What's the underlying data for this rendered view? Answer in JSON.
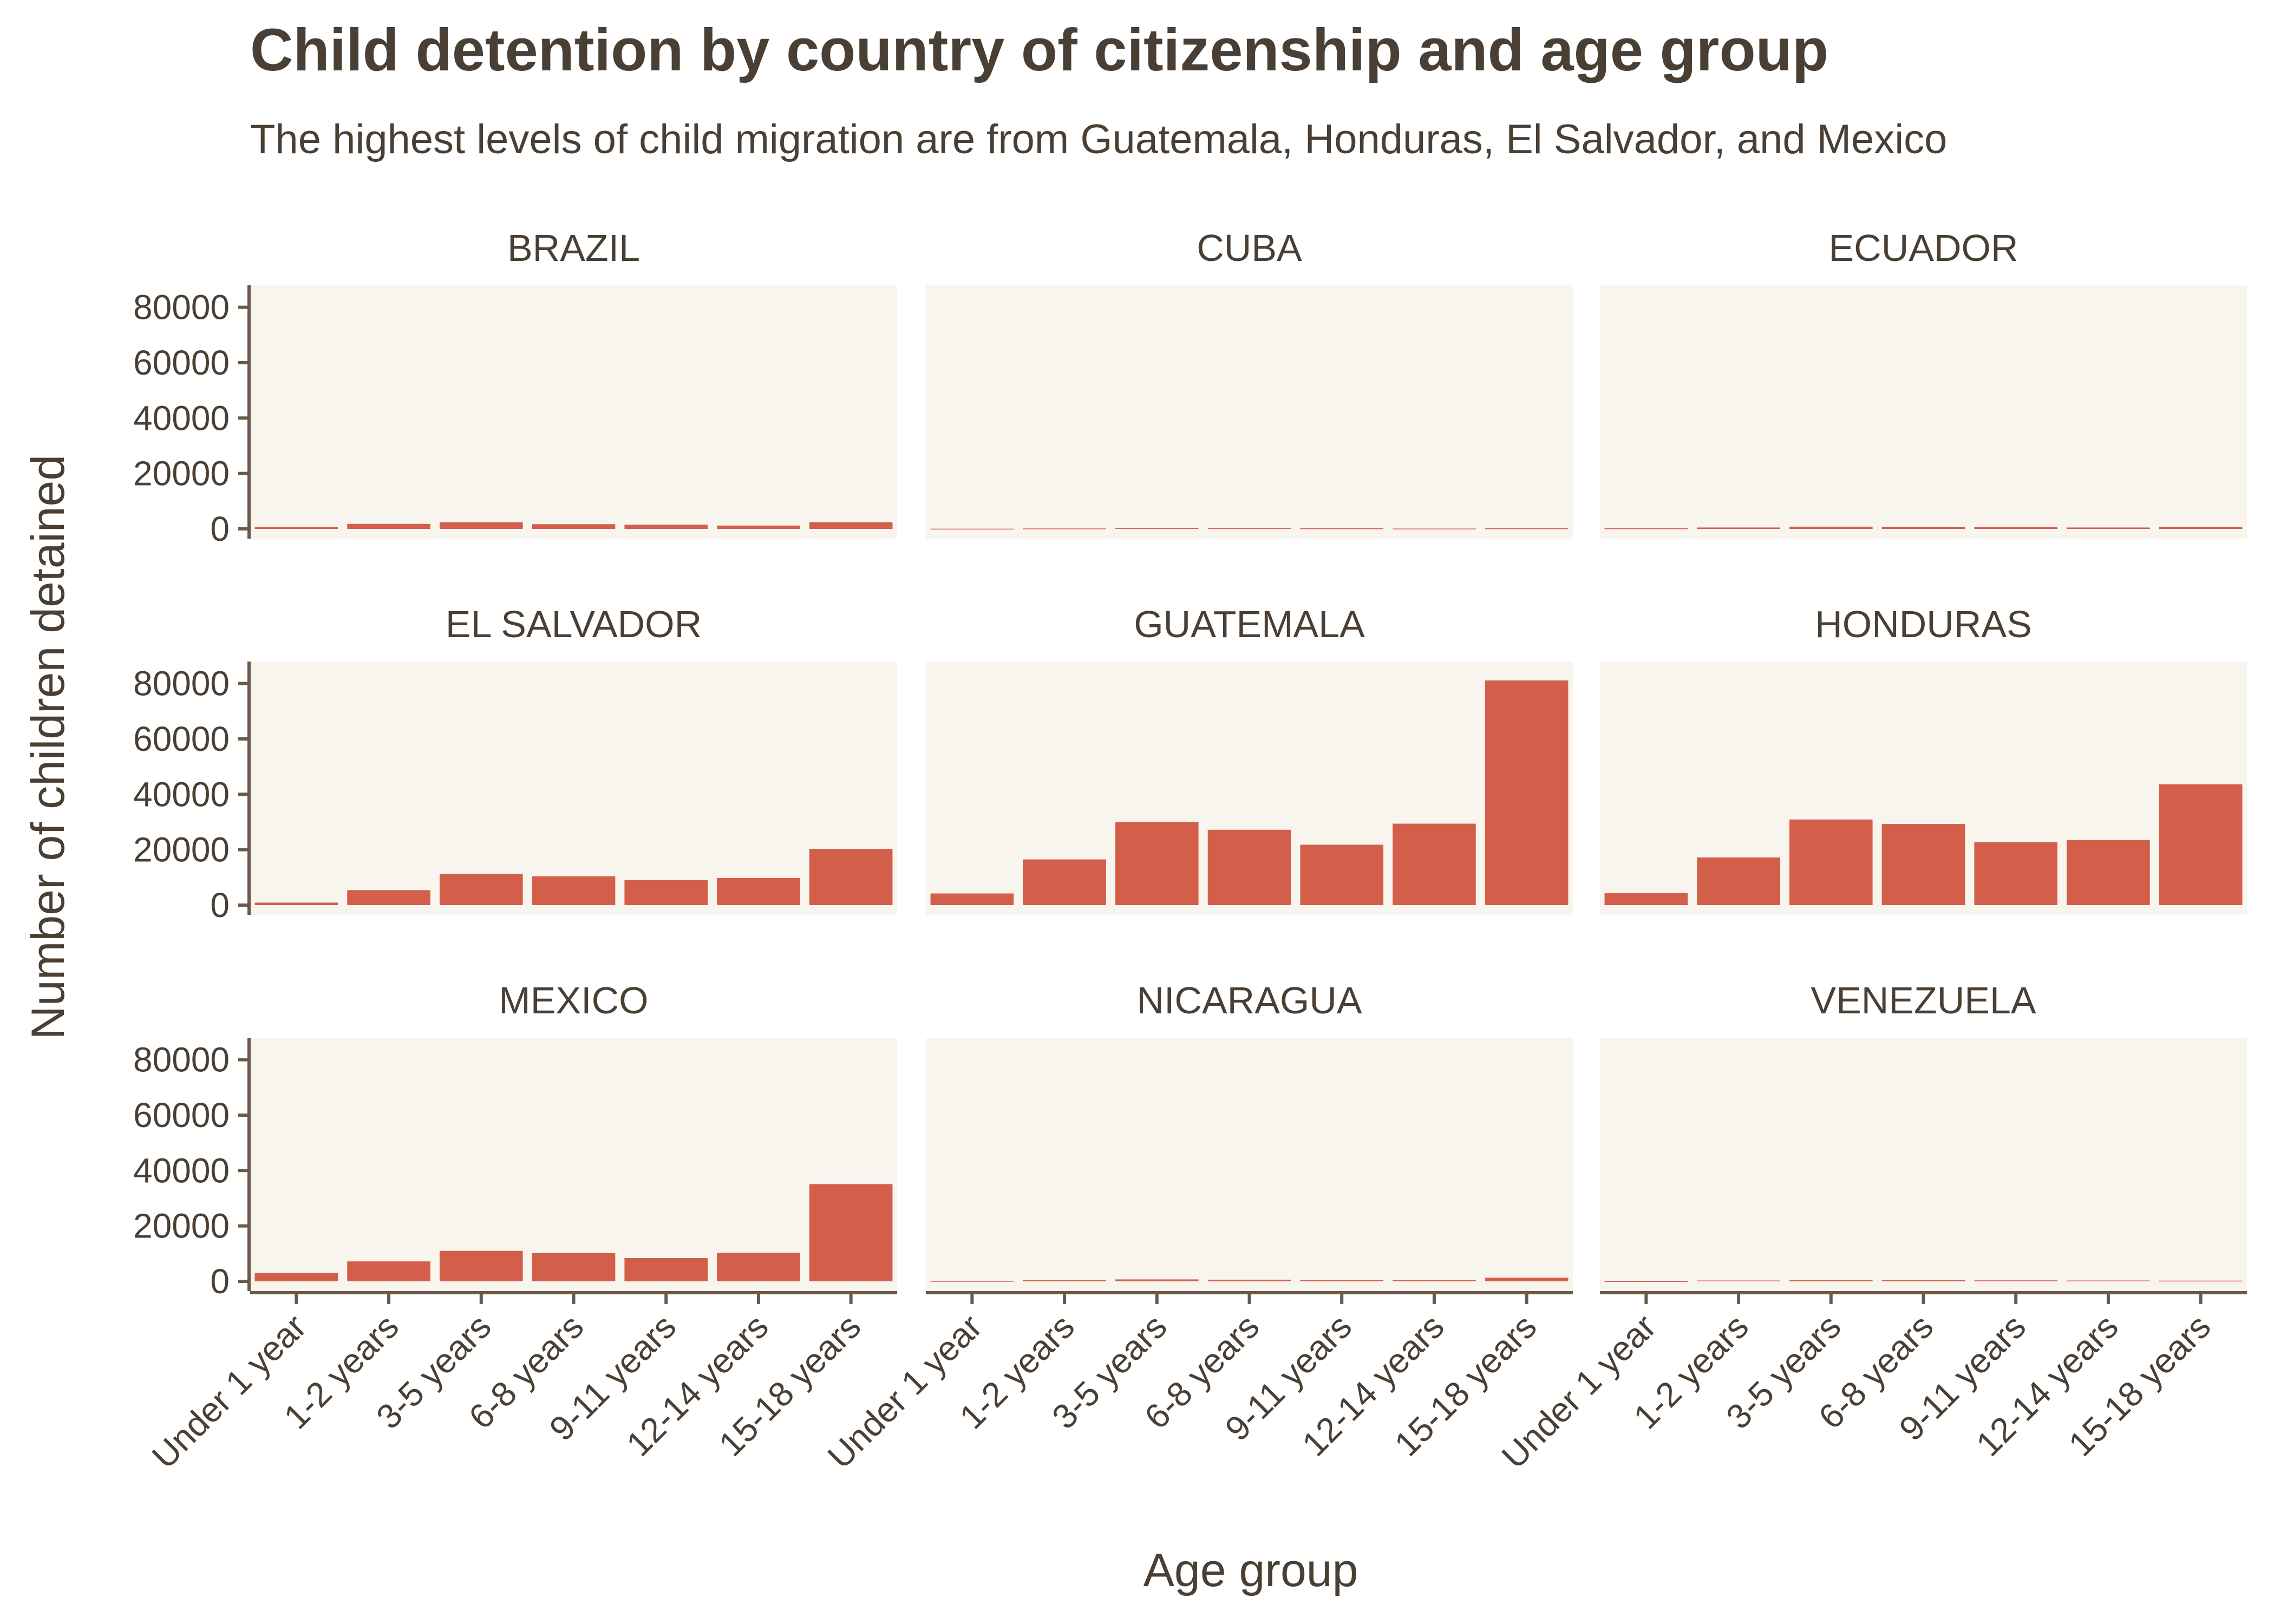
{
  "chart_data": {
    "type": "bar",
    "title": "Child detention by country of citizenship and age group",
    "subtitle": "The highest levels of child migration are from Guatemala, Honduras, El Salvador, and Mexico",
    "xlabel": "Age group",
    "ylabel": "Number of children detained",
    "ylim": [
      0,
      85000
    ],
    "yticks": [
      0,
      20000,
      40000,
      60000,
      80000
    ],
    "categories": [
      "Under 1 year",
      "1-2 years",
      "3-5 years",
      "6-8 years",
      "9-11 years",
      "12-14 years",
      "15-18 years"
    ],
    "grid": false,
    "facet_layout": "3x3",
    "colors": {
      "bar": "#d35f4b",
      "panel": "#f8f5ef",
      "text": "#4a3f35",
      "axis": "#6b5a4a"
    },
    "panels": [
      {
        "name": "BRAZIL",
        "values": [
          600,
          1800,
          2400,
          1700,
          1500,
          1200,
          2400
        ]
      },
      {
        "name": "CUBA",
        "values": [
          60,
          150,
          300,
          250,
          200,
          120,
          200
        ]
      },
      {
        "name": "ECUADOR",
        "values": [
          200,
          500,
          800,
          700,
          600,
          500,
          700
        ]
      },
      {
        "name": "EL SALVADOR",
        "values": [
          900,
          5400,
          11300,
          10400,
          9000,
          9800,
          20300
        ]
      },
      {
        "name": "GUATEMALA",
        "values": [
          4200,
          16500,
          30000,
          27200,
          21800,
          29400,
          81100
        ]
      },
      {
        "name": "HONDURAS",
        "values": [
          4300,
          17200,
          30900,
          29300,
          22700,
          23500,
          43600
        ]
      },
      {
        "name": "MEXICO",
        "values": [
          3000,
          7200,
          11000,
          10200,
          8400,
          10300,
          35100
        ]
      },
      {
        "name": "NICARAGUA",
        "values": [
          150,
          400,
          700,
          600,
          500,
          500,
          1300
        ]
      },
      {
        "name": "VENEZUELA",
        "values": [
          100,
          300,
          400,
          400,
          350,
          300,
          250
        ]
      }
    ]
  }
}
